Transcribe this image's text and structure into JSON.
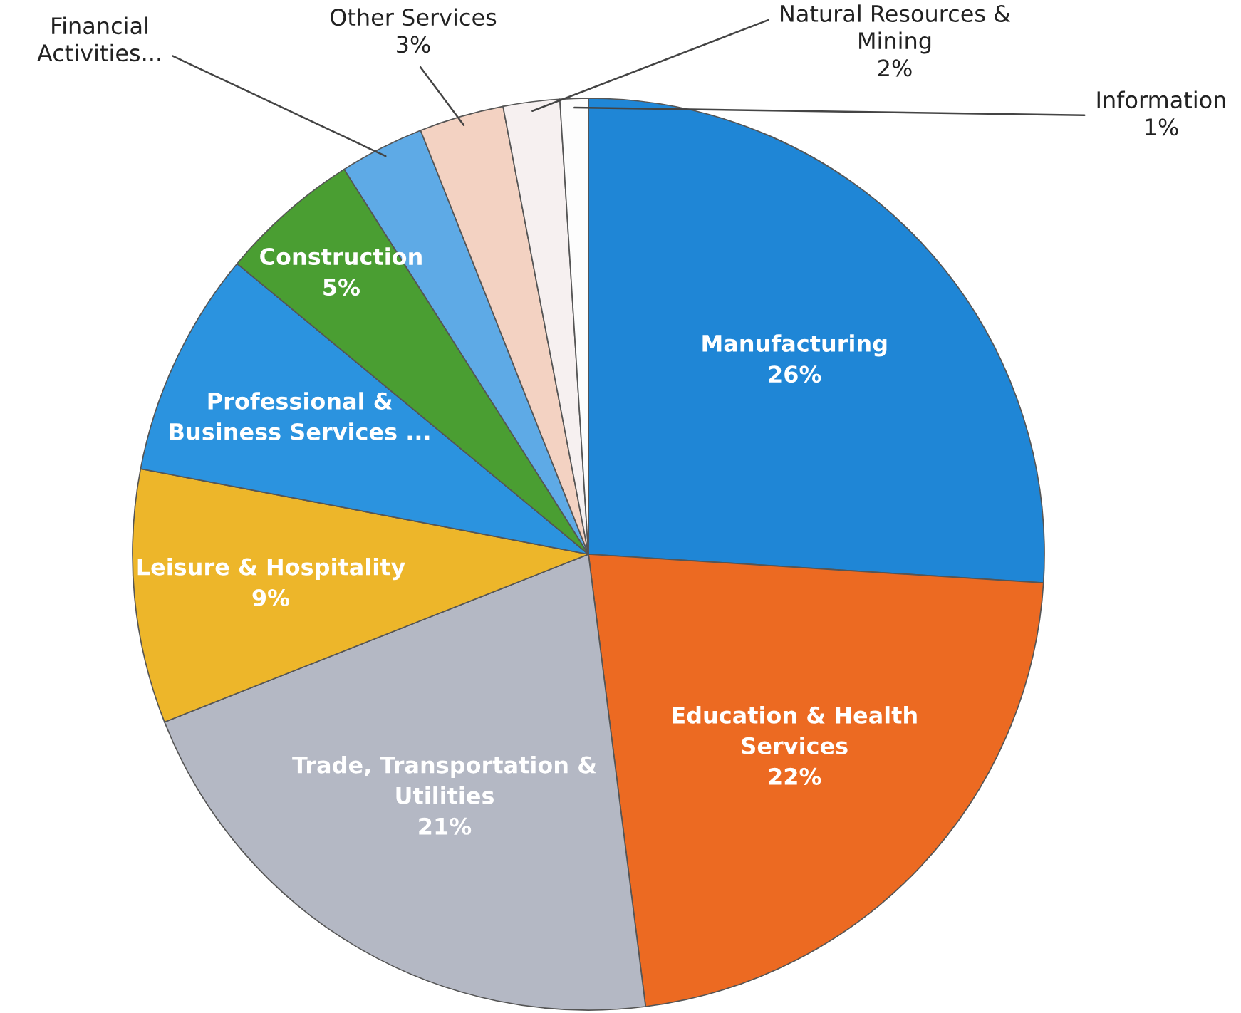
{
  "chart_data": {
    "type": "pie",
    "categories": [
      "Manufacturing",
      "Education & Health\nServices",
      "Trade, Transportation &\nUtilities",
      "Leisure & Hospitality",
      "Professional &\nBusiness Services ...",
      "Construction",
      "Financial\nActivities...",
      "Other Services",
      "Natural Resources &\nMining",
      "Information"
    ],
    "values": [
      26,
      22,
      21,
      9,
      8,
      5,
      3,
      3,
      2,
      1
    ],
    "value_labels": [
      "26%",
      "22%",
      "21%",
      "9%",
      null,
      "5%",
      null,
      "3%",
      "2%",
      "1%"
    ],
    "colors": [
      "#1f86d6",
      "#ec6a22",
      "#b4b8c4",
      "#edb62a",
      "#2b93df",
      "#4a9e32",
      "#5eaae6",
      "#f3d2c2",
      "#f6f0f0",
      "#fdfdfd"
    ]
  }
}
